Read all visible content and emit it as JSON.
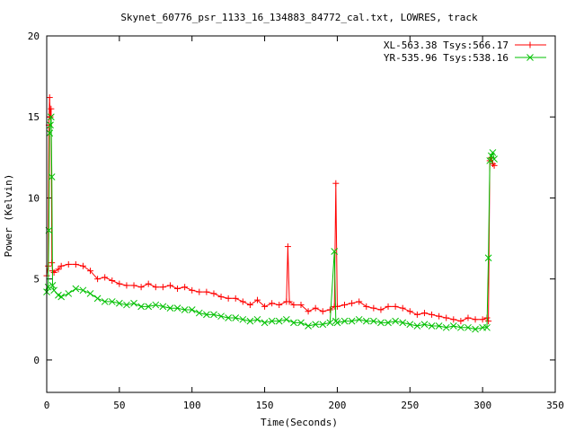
{
  "chart_data": {
    "type": "line",
    "title": "Skynet_60776_psr_1133_16_134883_84772_cal.txt, LOWRES, track",
    "xlabel": "Time(Seconds)",
    "ylabel": "Power (Kelvin)",
    "xlim": [
      0,
      350
    ],
    "ylim": [
      -2,
      20
    ],
    "x_ticks": [
      0,
      50,
      100,
      150,
      200,
      250,
      300,
      350
    ],
    "y_ticks": [
      0,
      5,
      10,
      15,
      20
    ],
    "grid": false,
    "legend_position": "top-right",
    "series": [
      {
        "name": "XL-563.38 Tsys:566.17",
        "color": "#ff0000",
        "marker": "plus",
        "x": [
          0,
          1,
          1.5,
          2,
          2.5,
          3,
          3.5,
          4,
          5,
          8,
          10,
          15,
          20,
          25,
          30,
          35,
          40,
          45,
          50,
          55,
          60,
          65,
          70,
          75,
          80,
          85,
          90,
          95,
          100,
          105,
          110,
          115,
          120,
          125,
          130,
          135,
          140,
          145,
          150,
          155,
          160,
          165,
          166,
          167,
          170,
          175,
          180,
          185,
          190,
          195,
          198,
          199,
          200,
          205,
          210,
          215,
          220,
          225,
          230,
          235,
          240,
          245,
          250,
          255,
          260,
          265,
          270,
          275,
          280,
          285,
          290,
          295,
          300,
          303,
          304,
          305,
          306,
          307,
          308
        ],
        "y": [
          5.2,
          5.8,
          14.5,
          16.2,
          15.0,
          15.5,
          6.0,
          5.5,
          5.4,
          5.6,
          5.8,
          5.9,
          5.9,
          5.8,
          5.5,
          5.0,
          5.1,
          4.9,
          4.7,
          4.6,
          4.6,
          4.5,
          4.7,
          4.5,
          4.5,
          4.6,
          4.4,
          4.5,
          4.3,
          4.2,
          4.2,
          4.1,
          3.9,
          3.8,
          3.8,
          3.6,
          3.4,
          3.7,
          3.3,
          3.5,
          3.4,
          3.6,
          7.0,
          3.6,
          3.4,
          3.4,
          3.0,
          3.2,
          3.0,
          3.1,
          3.3,
          10.9,
          3.3,
          3.4,
          3.5,
          3.6,
          3.3,
          3.2,
          3.1,
          3.3,
          3.3,
          3.2,
          3.0,
          2.8,
          2.9,
          2.8,
          2.7,
          2.6,
          2.5,
          2.4,
          2.6,
          2.5,
          2.5,
          2.6,
          2.4,
          12.3,
          12.5,
          12.1,
          12.0
        ]
      },
      {
        "name": "YR-535.96 Tsys:538.16",
        "color": "#00c000",
        "marker": "cross",
        "x": [
          0,
          1,
          1.5,
          2,
          2.5,
          3,
          3.5,
          4,
          5,
          8,
          10,
          15,
          20,
          25,
          30,
          35,
          40,
          45,
          50,
          55,
          60,
          65,
          70,
          75,
          80,
          85,
          90,
          95,
          100,
          105,
          110,
          115,
          120,
          125,
          130,
          135,
          140,
          145,
          150,
          155,
          160,
          165,
          170,
          175,
          180,
          185,
          190,
          195,
          198,
          199,
          200,
          205,
          210,
          215,
          220,
          225,
          230,
          235,
          240,
          245,
          250,
          255,
          260,
          265,
          270,
          275,
          280,
          285,
          290,
          295,
          300,
          303,
          304,
          305,
          306,
          307,
          308
        ],
        "y": [
          4.2,
          4.5,
          8.0,
          14.0,
          14.5,
          15.0,
          11.3,
          4.6,
          4.3,
          4.0,
          3.9,
          4.1,
          4.4,
          4.3,
          4.1,
          3.8,
          3.6,
          3.6,
          3.5,
          3.4,
          3.5,
          3.3,
          3.3,
          3.4,
          3.3,
          3.2,
          3.2,
          3.1,
          3.1,
          2.9,
          2.8,
          2.8,
          2.7,
          2.6,
          2.6,
          2.5,
          2.4,
          2.5,
          2.3,
          2.4,
          2.4,
          2.5,
          2.3,
          2.3,
          2.1,
          2.2,
          2.2,
          2.3,
          6.7,
          2.4,
          2.3,
          2.4,
          2.4,
          2.5,
          2.4,
          2.4,
          2.3,
          2.3,
          2.4,
          2.3,
          2.2,
          2.1,
          2.2,
          2.1,
          2.1,
          2.0,
          2.1,
          2.0,
          2.0,
          1.9,
          2.0,
          2.0,
          6.3,
          12.3,
          12.6,
          12.8,
          12.4
        ]
      }
    ]
  }
}
